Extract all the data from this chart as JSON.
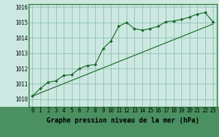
{
  "xlabel": "Graphe pression niveau de la mer (hPa)",
  "background_color": "#cce8e0",
  "grid_color": "#88bdb4",
  "line_color": "#1a6b2a",
  "border_color": "#2a7a3a",
  "ylim": [
    1009.5,
    1016.2
  ],
  "xlim": [
    -0.5,
    23.5
  ],
  "yticks": [
    1010,
    1011,
    1012,
    1013,
    1014,
    1015,
    1016
  ],
  "xticks": [
    0,
    1,
    2,
    3,
    4,
    5,
    6,
    7,
    8,
    9,
    10,
    11,
    12,
    13,
    14,
    15,
    16,
    17,
    18,
    19,
    20,
    21,
    22,
    23
  ],
  "series1_x": [
    0,
    1,
    2,
    3,
    4,
    5,
    6,
    7,
    8,
    9,
    10,
    11,
    12,
    13,
    14,
    15,
    16,
    17,
    18,
    19,
    20,
    21,
    22,
    23
  ],
  "series1_y": [
    1010.2,
    1010.7,
    1011.1,
    1011.2,
    1011.55,
    1011.6,
    1012.0,
    1012.2,
    1012.25,
    1013.3,
    1013.8,
    1014.75,
    1015.0,
    1014.6,
    1014.5,
    1014.6,
    1014.75,
    1015.05,
    1015.1,
    1015.2,
    1015.35,
    1015.55,
    1015.65,
    1015.05
  ],
  "series2_x": [
    0,
    23
  ],
  "series2_y": [
    1010.2,
    1014.9
  ],
  "marker": "D",
  "markersize": 2.0,
  "xlabel_fontsize": 7,
  "tick_fontsize": 5.5
}
